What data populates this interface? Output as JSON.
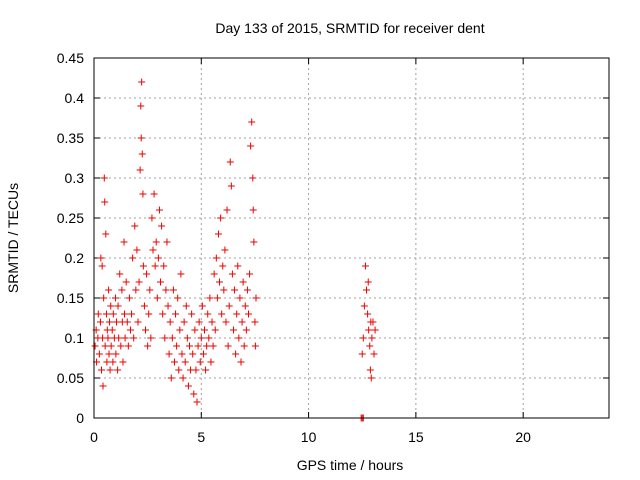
{
  "chart_data": {
    "type": "scatter",
    "title": "Day 133 of 2015, SRMTID for receiver dent",
    "xlabel": "GPS time / hours",
    "ylabel": "SRMTID / TECUs",
    "xlim": [
      0,
      24
    ],
    "ylim": [
      0,
      0.45
    ],
    "x_ticks": [
      0,
      5,
      10,
      15,
      20
    ],
    "x_tick_labels": [
      "0",
      "5",
      "10",
      "15",
      "20"
    ],
    "y_ticks": [
      0,
      0.05,
      0.1,
      0.15,
      0.2,
      0.25,
      0.3,
      0.35,
      0.4,
      0.45
    ],
    "y_tick_labels": [
      "0",
      "0.05",
      "0.1",
      "0.15",
      "0.2",
      "0.25",
      "0.3",
      "0.35",
      "0.4",
      "0.45"
    ],
    "grid": true,
    "marker": "plus",
    "series_color": "#ee0000",
    "series": [
      {
        "name": "SRMTID",
        "points": [
          [
            0.05,
            0.09
          ],
          [
            0.1,
            0.11
          ],
          [
            0.12,
            0.07
          ],
          [
            0.18,
            0.1
          ],
          [
            0.2,
            0.13
          ],
          [
            0.25,
            0.08
          ],
          [
            0.3,
            0.12
          ],
          [
            0.32,
            0.2
          ],
          [
            0.35,
            0.06
          ],
          [
            0.38,
            0.19
          ],
          [
            0.4,
            0.1
          ],
          [
            0.42,
            0.04
          ],
          [
            0.45,
            0.15
          ],
          [
            0.48,
            0.3
          ],
          [
            0.5,
            0.27
          ],
          [
            0.52,
            0.09
          ],
          [
            0.55,
            0.23
          ],
          [
            0.58,
            0.13
          ],
          [
            0.6,
            0.07
          ],
          [
            0.62,
            0.11
          ],
          [
            0.65,
            0.1
          ],
          [
            0.68,
            0.16
          ],
          [
            0.7,
            0.08
          ],
          [
            0.72,
            0.12
          ],
          [
            0.75,
            0.06
          ],
          [
            0.78,
            0.14
          ],
          [
            0.8,
            0.09
          ],
          [
            0.85,
            0.11
          ],
          [
            0.88,
            0.07
          ],
          [
            0.9,
            0.13
          ],
          [
            0.95,
            0.1
          ],
          [
            1.0,
            0.15
          ],
          [
            1.02,
            0.08
          ],
          [
            1.05,
            0.12
          ],
          [
            1.1,
            0.06
          ],
          [
            1.12,
            0.14
          ],
          [
            1.15,
            0.1
          ],
          [
            1.2,
            0.18
          ],
          [
            1.25,
            0.09
          ],
          [
            1.3,
            0.16
          ],
          [
            1.32,
            0.12
          ],
          [
            1.35,
            0.07
          ],
          [
            1.4,
            0.22
          ],
          [
            1.42,
            0.13
          ],
          [
            1.45,
            0.1
          ],
          [
            1.5,
            0.17
          ],
          [
            1.55,
            0.12
          ],
          [
            1.6,
            0.09
          ],
          [
            1.65,
            0.15
          ],
          [
            1.7,
            0.11
          ],
          [
            1.75,
            0.13
          ],
          [
            1.8,
            0.2
          ],
          [
            1.85,
            0.1
          ],
          [
            1.9,
            0.24
          ],
          [
            1.95,
            0.16
          ],
          [
            2.0,
            0.21
          ],
          [
            2.05,
            0.12
          ],
          [
            2.1,
            0.17
          ],
          [
            2.15,
            0.31
          ],
          [
            2.18,
            0.39
          ],
          [
            2.2,
            0.35
          ],
          [
            2.22,
            0.42
          ],
          [
            2.25,
            0.33
          ],
          [
            2.28,
            0.28
          ],
          [
            2.3,
            0.19
          ],
          [
            2.35,
            0.14
          ],
          [
            2.4,
            0.11
          ],
          [
            2.45,
            0.18
          ],
          [
            2.5,
            0.09
          ],
          [
            2.55,
            0.13
          ],
          [
            2.6,
            0.16
          ],
          [
            2.65,
            0.1
          ],
          [
            2.7,
            0.25
          ],
          [
            2.75,
            0.21
          ],
          [
            2.8,
            0.28
          ],
          [
            2.85,
            0.19
          ],
          [
            2.9,
            0.22
          ],
          [
            2.95,
            0.15
          ],
          [
            3.0,
            0.2
          ],
          [
            3.05,
            0.26
          ],
          [
            3.1,
            0.17
          ],
          [
            3.15,
            0.24
          ],
          [
            3.2,
            0.13
          ],
          [
            3.25,
            0.19
          ],
          [
            3.3,
            0.1
          ],
          [
            3.35,
            0.16
          ],
          [
            3.4,
            0.22
          ],
          [
            3.45,
            0.14
          ],
          [
            3.5,
            0.08
          ],
          [
            3.55,
            0.12
          ],
          [
            3.6,
            0.05
          ],
          [
            3.65,
            0.1
          ],
          [
            3.7,
            0.16
          ],
          [
            3.75,
            0.07
          ],
          [
            3.8,
            0.13
          ],
          [
            3.85,
            0.09
          ],
          [
            3.9,
            0.15
          ],
          [
            3.95,
            0.06
          ],
          [
            4.0,
            0.11
          ],
          [
            4.05,
            0.18
          ],
          [
            4.1,
            0.08
          ],
          [
            4.15,
            0.05
          ],
          [
            4.2,
            0.12
          ],
          [
            4.25,
            0.07
          ],
          [
            4.3,
            0.14
          ],
          [
            4.35,
            0.1
          ],
          [
            4.4,
            0.04
          ],
          [
            4.45,
            0.09
          ],
          [
            4.5,
            0.06
          ],
          [
            4.55,
            0.13
          ],
          [
            4.6,
            0.08
          ],
          [
            4.65,
            0.03
          ],
          [
            4.7,
            0.11
          ],
          [
            4.75,
            0.06
          ],
          [
            4.8,
            0.02
          ],
          [
            4.85,
            0.09
          ],
          [
            4.9,
            0.12
          ],
          [
            4.95,
            0.07
          ],
          [
            5.0,
            0.1
          ],
          [
            5.05,
            0.14
          ],
          [
            5.1,
            0.08
          ],
          [
            5.15,
            0.11
          ],
          [
            5.2,
            0.06
          ],
          [
            5.25,
            0.09
          ],
          [
            5.3,
            0.13
          ],
          [
            5.35,
            0.1
          ],
          [
            5.4,
            0.15
          ],
          [
            5.45,
            0.07
          ],
          [
            5.5,
            0.12
          ],
          [
            5.55,
            0.09
          ],
          [
            5.6,
            0.18
          ],
          [
            5.65,
            0.11
          ],
          [
            5.7,
            0.2
          ],
          [
            5.75,
            0.15
          ],
          [
            5.8,
            0.23
          ],
          [
            5.85,
            0.17
          ],
          [
            5.9,
            0.25
          ],
          [
            5.95,
            0.13
          ],
          [
            6.0,
            0.19
          ],
          [
            6.05,
            0.16
          ],
          [
            6.1,
            0.21
          ],
          [
            6.15,
            0.12
          ],
          [
            6.2,
            0.26
          ],
          [
            6.25,
            0.09
          ],
          [
            6.3,
            0.14
          ],
          [
            6.35,
            0.32
          ],
          [
            6.4,
            0.29
          ],
          [
            6.45,
            0.18
          ],
          [
            6.5,
            0.11
          ],
          [
            6.55,
            0.16
          ],
          [
            6.6,
            0.08
          ],
          [
            6.65,
            0.13
          ],
          [
            6.7,
            0.19
          ],
          [
            6.75,
            0.1
          ],
          [
            6.8,
            0.15
          ],
          [
            6.85,
            0.07
          ],
          [
            6.9,
            0.12
          ],
          [
            6.95,
            0.17
          ],
          [
            7.0,
            0.09
          ],
          [
            7.05,
            0.14
          ],
          [
            7.1,
            0.11
          ],
          [
            7.15,
            0.16
          ],
          [
            7.2,
            0.13
          ],
          [
            7.25,
            0.18
          ],
          [
            7.3,
            0.34
          ],
          [
            7.35,
            0.37
          ],
          [
            7.4,
            0.3
          ],
          [
            7.42,
            0.26
          ],
          [
            7.45,
            0.22
          ],
          [
            7.5,
            0.12
          ],
          [
            7.52,
            0.09
          ],
          [
            7.55,
            0.15
          ],
          [
            12.45,
            0.0
          ],
          [
            12.5,
            0.0
          ],
          [
            12.55,
            0.0
          ],
          [
            12.5,
            0.08
          ],
          [
            12.55,
            0.1
          ],
          [
            12.6,
            0.14
          ],
          [
            12.65,
            0.19
          ],
          [
            12.7,
            0.16
          ],
          [
            12.75,
            0.13
          ],
          [
            12.78,
            0.17
          ],
          [
            12.8,
            0.11
          ],
          [
            12.85,
            0.09
          ],
          [
            12.88,
            0.06
          ],
          [
            12.9,
            0.12
          ],
          [
            12.92,
            0.05
          ],
          [
            12.95,
            0.1
          ],
          [
            13.0,
            0.12
          ],
          [
            13.05,
            0.08
          ],
          [
            13.1,
            0.11
          ]
        ]
      }
    ]
  }
}
